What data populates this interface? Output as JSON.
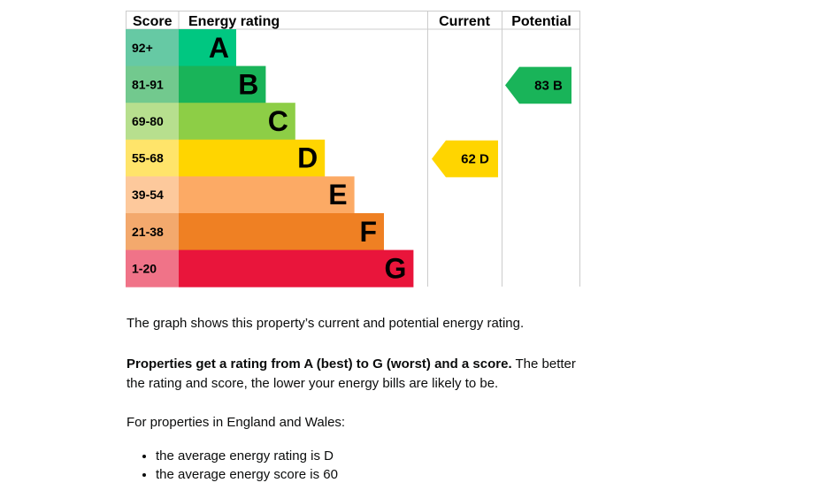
{
  "chart_data": {
    "type": "bar",
    "headers": {
      "score": "Score",
      "rating": "Energy rating",
      "current": "Current",
      "potential": "Potential"
    },
    "bands": [
      {
        "score": "92+",
        "letter": "A",
        "color": "#00c781",
        "score_color": "#66c9a4"
      },
      {
        "score": "81-91",
        "letter": "B",
        "color": "#19b459",
        "score_color": "#72c98e"
      },
      {
        "score": "69-80",
        "letter": "C",
        "color": "#8dce46",
        "score_color": "#b7df8e"
      },
      {
        "score": "55-68",
        "letter": "D",
        "color": "#ffd500",
        "score_color": "#ffe46a"
      },
      {
        "score": "39-54",
        "letter": "E",
        "color": "#fcaa65",
        "score_color": "#fdc99c"
      },
      {
        "score": "21-38",
        "letter": "F",
        "color": "#ef8023",
        "score_color": "#f3a96d"
      },
      {
        "score": "1-20",
        "letter": "G",
        "color": "#e9153b",
        "score_color": "#f07388"
      }
    ],
    "current": {
      "score": 62,
      "letter": "D",
      "label": "62  D",
      "band": 3
    },
    "potential": {
      "score": 83,
      "letter": "B",
      "label": "83  B",
      "band": 1
    }
  },
  "text": {
    "p1": "The graph shows this property’s current and potential energy rating.",
    "p2_bold": "Properties get a rating from A (best) to G (worst) and a score.",
    "p2_rest": " The better the rating and score, the lower your energy bills are likely to be.",
    "p3": "For properties in England and Wales:",
    "bullets": [
      "the average energy rating is D",
      "the average energy score is 60"
    ]
  }
}
